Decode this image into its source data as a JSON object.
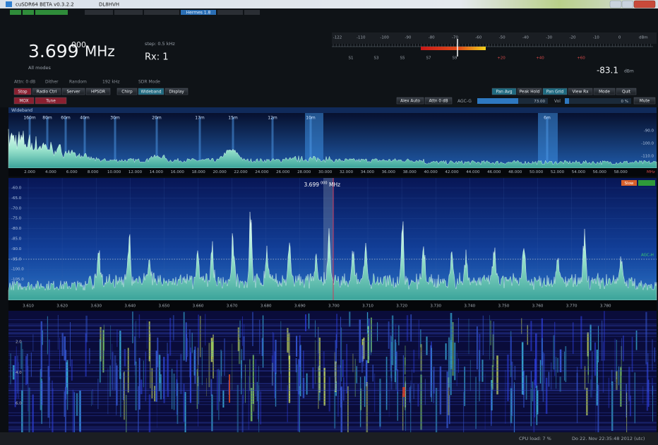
{
  "window": {
    "title": "cuSDR64 BETA  v0.3.2.2",
    "callsign": "DL8HVH",
    "top_tab": "Hermes 1.8"
  },
  "frequency": {
    "main": "3.699",
    "sub": "000",
    "unit": "MHz",
    "receiver": "Rx: 1",
    "step": "step: 0.5 kHz",
    "mode": "All modes"
  },
  "smeter": {
    "scale_top": [
      "-122",
      "-110",
      "-100",
      "-90",
      "-80",
      "-70",
      "-60",
      "-50",
      "-40",
      "-30",
      "-20",
      "-10",
      "0"
    ],
    "unit_top": "dBm",
    "scale_bottom": [
      "S1",
      "S3",
      "S5",
      "S7",
      "S9",
      "+20",
      "+40",
      "+60"
    ],
    "reading": "-83.1",
    "reading_unit": "dBm"
  },
  "status_line": [
    "Attn: 0 dB",
    "Dither",
    "Random",
    "192  kHz",
    "SDR Mode"
  ],
  "buttons_left": [
    "Stop",
    "Radio Ctrl",
    "Server",
    "HPSDR",
    "Chirp",
    "Wideband",
    "Display"
  ],
  "buttons_right": [
    "Pan Avg",
    "Peak Hold",
    "Pan Grid",
    "View Rx",
    "Mode",
    "Quit"
  ],
  "buttons_tx": [
    "MOX",
    "Tune"
  ],
  "controls": {
    "alex_auto": "Alex Auto",
    "attn": "Attn 0 dB",
    "agc": "AGC-G",
    "agc_value": "73.00",
    "vol": "Vol",
    "vol_value": "0 %",
    "mute": "Mute"
  },
  "wideband": {
    "label": "Wideband",
    "bands": [
      "160m",
      "80m",
      "60m",
      "40m",
      "30m",
      "20m",
      "17m",
      "15m",
      "12m",
      "10m",
      "6m"
    ],
    "freq_labels": [
      "2.000",
      "4.000",
      "6.000",
      "8.000",
      "10.000",
      "12.000",
      "14.000",
      "16.000",
      "18.000",
      "20.000",
      "22.000",
      "24.000",
      "26.000",
      "28.000",
      "30.000",
      "32.000",
      "34.000",
      "36.000",
      "38.000",
      "40.000",
      "42.000",
      "44.000",
      "46.000",
      "48.000",
      "50.000",
      "52.000",
      "54.000",
      "56.000",
      "58.000"
    ],
    "freq_unit": "MHz",
    "db_labels": [
      "-90.0",
      "-100.0",
      "-110.0"
    ]
  },
  "panadapter": {
    "center_main": "3.699",
    "center_sub": "000",
    "center_unit": "MHz",
    "db_labels": [
      "-60.0",
      "-65.0",
      "-70.0",
      "-75.0",
      "-80.0",
      "-85.0",
      "-90.0",
      "-95.0",
      "-100.0",
      "-105.0",
      "-110.0"
    ],
    "freq_labels": [
      "3.610",
      "3.620",
      "3.630",
      "3.640",
      "3.650",
      "3.660",
      "3.670",
      "3.680",
      "3.690",
      "3.700",
      "3.710",
      "3.720",
      "3.730",
      "3.740",
      "3.750",
      "3.760",
      "3.770",
      "3.780"
    ],
    "speed": "Slow",
    "agc_label": "AGC-H"
  },
  "waterfall": {
    "time_labels": [
      "2.0",
      "4.0",
      "6.0"
    ]
  },
  "statusbar": {
    "cpu": "CPU load: 7 %",
    "datetime": "Do 22. Nov 22:35:48 2012 (utc)"
  }
}
